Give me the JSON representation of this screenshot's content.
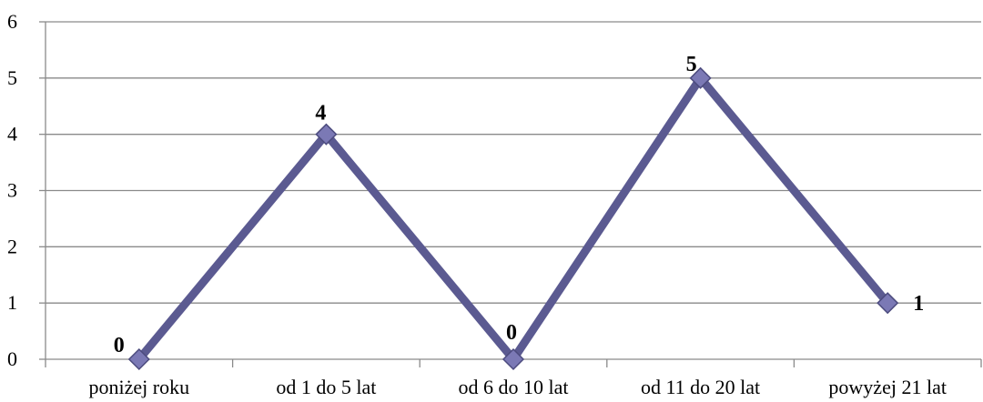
{
  "chart_data": {
    "type": "line",
    "title": "",
    "xlabel": "",
    "ylabel": "",
    "categories": [
      "poniżej roku",
      "od 1 do 5 lat",
      "od 6 do 10 lat",
      "od 11 do 20 lat",
      "powyżej 21 lat"
    ],
    "series": [
      {
        "values": [
          0,
          4,
          0,
          5,
          1
        ],
        "color": "#5b5a91",
        "marker_color": "#7b79b5"
      }
    ],
    "data_labels": [
      "0",
      "4",
      "0",
      "5",
      "1"
    ],
    "ylim": [
      0,
      6
    ],
    "yticks": [
      "0",
      "1",
      "2",
      "3",
      "4",
      "5",
      "6"
    ],
    "grid": true,
    "legend": "none"
  }
}
